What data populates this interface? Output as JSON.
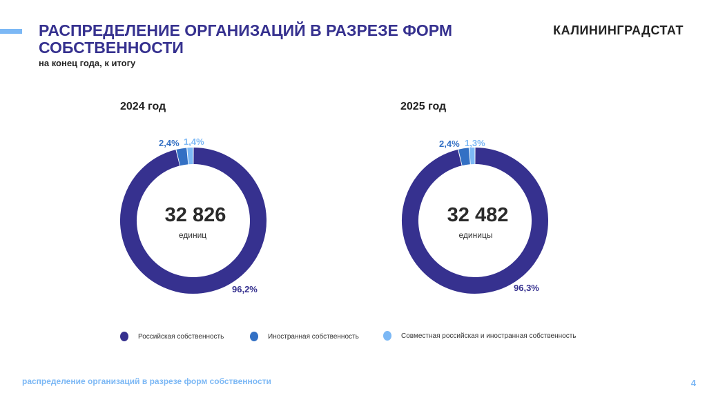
{
  "header": {
    "title": "РАСПРЕДЕЛЕНИЕ ОРГАНИЗАЦИЙ В РАЗРЕЗЕ ФОРМ СОБСТВЕННОСТИ",
    "subtitle": "на конец года, к итогу",
    "brand": "КАЛИНИНГРАДСТАТ"
  },
  "chart_data": [
    {
      "type": "pie",
      "title": "2024 год",
      "center_value": "32 826",
      "center_unit": "единиц",
      "categories": [
        "Российская собственность",
        "Иностранная собственность",
        "Совместная российская и иностранная собственность"
      ],
      "values": [
        96.2,
        2.4,
        1.4
      ],
      "labels": [
        "96,2%",
        "2,4%",
        "1,4%"
      ]
    },
    {
      "type": "pie",
      "title": "2025 год",
      "center_value": "32 482",
      "center_unit": "единицы",
      "categories": [
        "Российская собственность",
        "Иностранная собственность",
        "Совместная российская и иностранная собственность"
      ],
      "values": [
        96.3,
        2.4,
        1.3
      ],
      "labels": [
        "96,3%",
        "2,4%",
        "1,3%"
      ]
    }
  ],
  "colors": [
    "#36318f",
    "#3370c4",
    "#7cb8f5"
  ],
  "legend": [
    "Российская собственность",
    "Иностранная собственность",
    "Совместная российская и иностранная собственность"
  ],
  "footer": {
    "text": "распределение организаций в разрезе форм собственности",
    "page": "4"
  }
}
